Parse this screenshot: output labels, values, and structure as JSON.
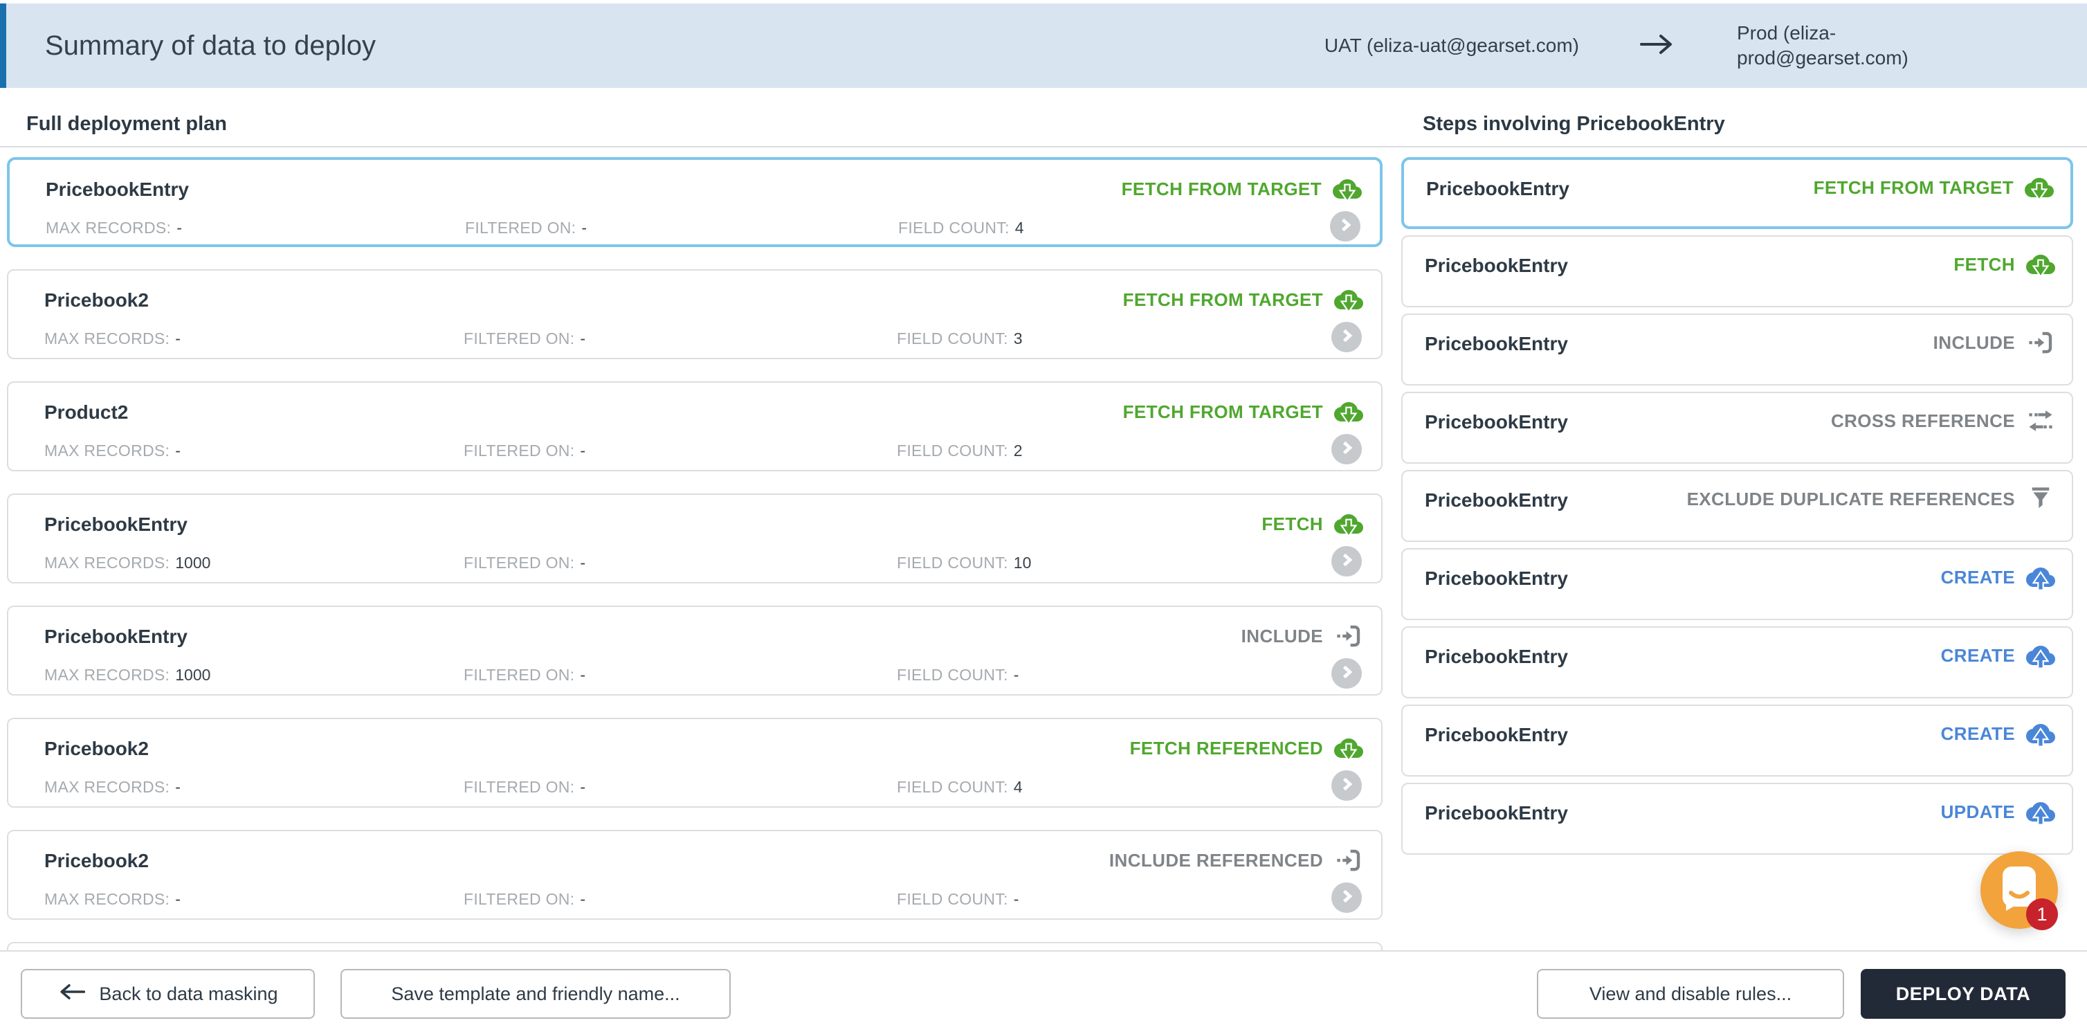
{
  "header": {
    "title": "Summary of data to deploy",
    "source_org": "UAT (eliza-uat@gearset.com)",
    "target_org": "Prod (eliza-prod@gearset.com)",
    "arrow_icon": "arrow-right-icon"
  },
  "left_panel": {
    "heading": "Full deployment plan",
    "meta_labels": {
      "max_records": "MAX RECORDS:",
      "filtered_on": "FILTERED ON:",
      "field_count": "FIELD COUNT:"
    },
    "cards": [
      {
        "name": "PricebookEntry",
        "action": "FETCH FROM TARGET",
        "action_color": "green",
        "icon": "cloud-download-icon",
        "max_records": "-",
        "filtered_on": "-",
        "field_count": "4",
        "selected": true
      },
      {
        "name": "Pricebook2",
        "action": "FETCH FROM TARGET",
        "action_color": "green",
        "icon": "cloud-download-icon",
        "max_records": "-",
        "filtered_on": "-",
        "field_count": "3",
        "selected": false
      },
      {
        "name": "Product2",
        "action": "FETCH FROM TARGET",
        "action_color": "green",
        "icon": "cloud-download-icon",
        "max_records": "-",
        "filtered_on": "-",
        "field_count": "2",
        "selected": false
      },
      {
        "name": "PricebookEntry",
        "action": "FETCH",
        "action_color": "green",
        "icon": "cloud-download-icon",
        "max_records": "1000",
        "filtered_on": "-",
        "field_count": "10",
        "selected": false
      },
      {
        "name": "PricebookEntry",
        "action": "INCLUDE",
        "action_color": "gray",
        "icon": "import-icon",
        "max_records": "1000",
        "filtered_on": "-",
        "field_count": "-",
        "selected": false
      },
      {
        "name": "Pricebook2",
        "action": "FETCH REFERENCED",
        "action_color": "green",
        "icon": "cloud-download-icon",
        "max_records": "-",
        "filtered_on": "-",
        "field_count": "4",
        "selected": false
      },
      {
        "name": "Pricebook2",
        "action": "INCLUDE REFERENCED",
        "action_color": "gray",
        "icon": "import-icon",
        "max_records": "-",
        "filtered_on": "-",
        "field_count": "-",
        "selected": false
      }
    ]
  },
  "right_panel": {
    "heading": "Steps involving PricebookEntry",
    "cards": [
      {
        "name": "PricebookEntry",
        "action": "FETCH FROM TARGET",
        "action_color": "green",
        "icon": "cloud-download-icon",
        "selected": true
      },
      {
        "name": "PricebookEntry",
        "action": "FETCH",
        "action_color": "green",
        "icon": "cloud-download-icon",
        "selected": false
      },
      {
        "name": "PricebookEntry",
        "action": "INCLUDE",
        "action_color": "gray",
        "icon": "import-icon",
        "selected": false
      },
      {
        "name": "PricebookEntry",
        "action": "CROSS REFERENCE",
        "action_color": "gray",
        "icon": "transfer-icon",
        "selected": false
      },
      {
        "name": "PricebookEntry",
        "action": "EXCLUDE DUPLICATE REFERENCES",
        "action_color": "gray",
        "icon": "funnel-icon",
        "selected": false
      },
      {
        "name": "PricebookEntry",
        "action": "CREATE",
        "action_color": "blue",
        "icon": "cloud-upload-icon",
        "selected": false
      },
      {
        "name": "PricebookEntry",
        "action": "CREATE",
        "action_color": "blue",
        "icon": "cloud-upload-icon",
        "selected": false
      },
      {
        "name": "PricebookEntry",
        "action": "CREATE",
        "action_color": "blue",
        "icon": "cloud-upload-icon",
        "selected": false
      },
      {
        "name": "PricebookEntry",
        "action": "UPDATE",
        "action_color": "blue",
        "icon": "cloud-upload-icon",
        "selected": false
      }
    ]
  },
  "footer": {
    "back_button": "Back to data masking",
    "save_template_button": "Save template and friendly name...",
    "view_rules_button": "View and disable rules...",
    "deploy_button": "DEPLOY DATA"
  },
  "chat_widget": {
    "badge_count": "1"
  },
  "colors": {
    "header_bg": "#d9e4f1",
    "header_accent": "#1a6fad",
    "fetch_green": "#4fa72e",
    "upload_blue": "#4a86d8",
    "neutral_gray": "#7f8488",
    "selected_border": "#7dc5ea",
    "deploy_button_bg": "#222a38",
    "chat_orange": "#f2a33c",
    "badge_red": "#c8232c"
  }
}
